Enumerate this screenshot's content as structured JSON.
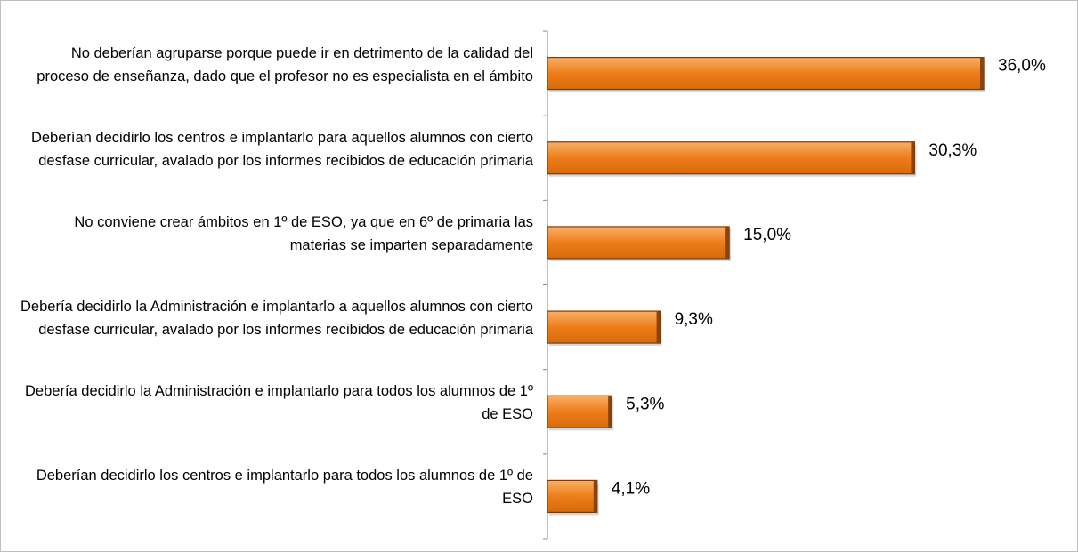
{
  "chart_data": {
    "type": "bar",
    "orientation": "horizontal",
    "categories": [
      "No deberían agruparse porque puede ir en detrimento de la calidad del proceso de enseñanza, dado que el profesor no es especialista en el ámbito",
      "Deberían decidirlo los centros e implantarlo para aquellos alumnos con cierto desfase curricular, avalado por los informes recibidos de educación primaria",
      "No conviene crear ámbitos en 1º de ESO, ya que en 6º de primaria las materias se imparten separadamente",
      "Debería decidirlo la Administración e implantarlo a aquellos alumnos con cierto desfase curricular, avalado por los informes recibidos de educación primaria",
      "Debería decidirlo la Administración e implantarlo para todos los alumnos de 1º de ESO",
      "Deberían decidirlo los centros e implantarlo para todos los alumnos de 1º de ESO"
    ],
    "values": [
      36.0,
      30.3,
      15.0,
      9.3,
      5.3,
      4.1
    ],
    "value_labels": [
      "36,0%",
      "30,3%",
      "15,0%",
      "9,3%",
      "5,3%",
      "4,1%"
    ],
    "color": "#ed7d1a"
  }
}
